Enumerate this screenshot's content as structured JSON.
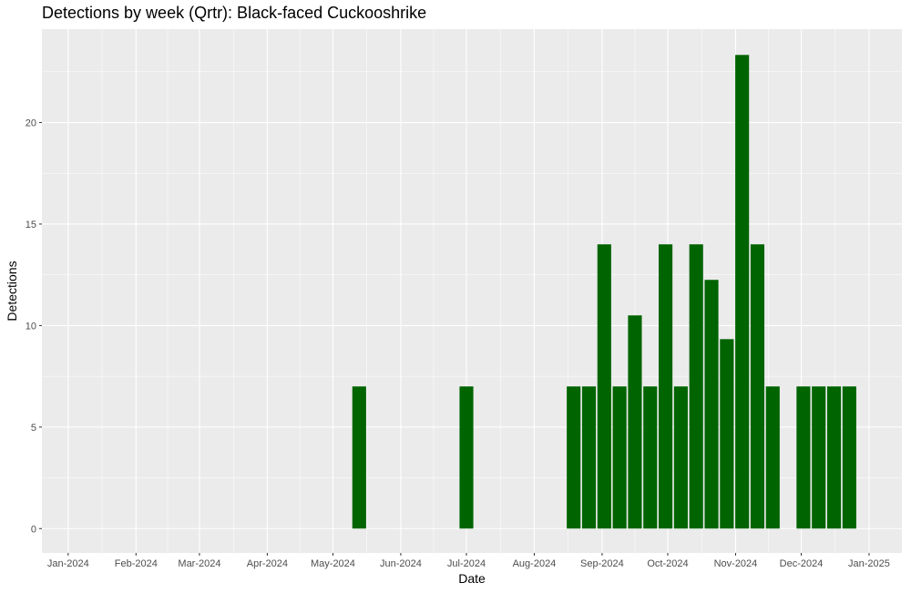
{
  "chart_data": {
    "type": "bar",
    "title": "Detections by week (Qrtr): Black-faced Cuckooshrike",
    "xlabel": "Date",
    "ylabel": "Detections",
    "x_type": "date",
    "xlim": [
      "2023-12-20",
      "2025-01-16"
    ],
    "ylim": [
      -1.2,
      24.6
    ],
    "y_ticks": [
      0,
      5,
      10,
      15,
      20
    ],
    "x_ticks": [
      {
        "date": "2024-01-01",
        "label": "Jan-2024"
      },
      {
        "date": "2024-02-01",
        "label": "Feb-2024"
      },
      {
        "date": "2024-03-01",
        "label": "Mar-2024"
      },
      {
        "date": "2024-04-01",
        "label": "Apr-2024"
      },
      {
        "date": "2024-05-01",
        "label": "May-2024"
      },
      {
        "date": "2024-06-01",
        "label": "Jun-2024"
      },
      {
        "date": "2024-07-01",
        "label": "Jul-2024"
      },
      {
        "date": "2024-08-01",
        "label": "Aug-2024"
      },
      {
        "date": "2024-09-01",
        "label": "Sep-2024"
      },
      {
        "date": "2024-10-01",
        "label": "Oct-2024"
      },
      {
        "date": "2024-11-01",
        "label": "Nov-2024"
      },
      {
        "date": "2024-12-01",
        "label": "Dec-2024"
      },
      {
        "date": "2025-01-01",
        "label": "Jan-2025"
      }
    ],
    "bar_color": "#006400",
    "panel_background": "#ebebeb",
    "grid_color": "#ffffff",
    "grid": true,
    "data": [
      {
        "x": "2024-05-13",
        "y": 7
      },
      {
        "x": "2024-07-01",
        "y": 7
      },
      {
        "x": "2024-08-19",
        "y": 7
      },
      {
        "x": "2024-08-26",
        "y": 7
      },
      {
        "x": "2024-09-02",
        "y": 14
      },
      {
        "x": "2024-09-09",
        "y": 7
      },
      {
        "x": "2024-09-16",
        "y": 10.5
      },
      {
        "x": "2024-09-23",
        "y": 7
      },
      {
        "x": "2024-09-30",
        "y": 14
      },
      {
        "x": "2024-10-07",
        "y": 7
      },
      {
        "x": "2024-10-14",
        "y": 14
      },
      {
        "x": "2024-10-21",
        "y": 12.25
      },
      {
        "x": "2024-10-28",
        "y": 9.33
      },
      {
        "x": "2024-11-04",
        "y": 23.33
      },
      {
        "x": "2024-11-11",
        "y": 14
      },
      {
        "x": "2024-11-18",
        "y": 7
      },
      {
        "x": "2024-12-02",
        "y": 7
      },
      {
        "x": "2024-12-09",
        "y": 7
      },
      {
        "x": "2024-12-16",
        "y": 7
      },
      {
        "x": "2024-12-23",
        "y": 7
      }
    ]
  }
}
